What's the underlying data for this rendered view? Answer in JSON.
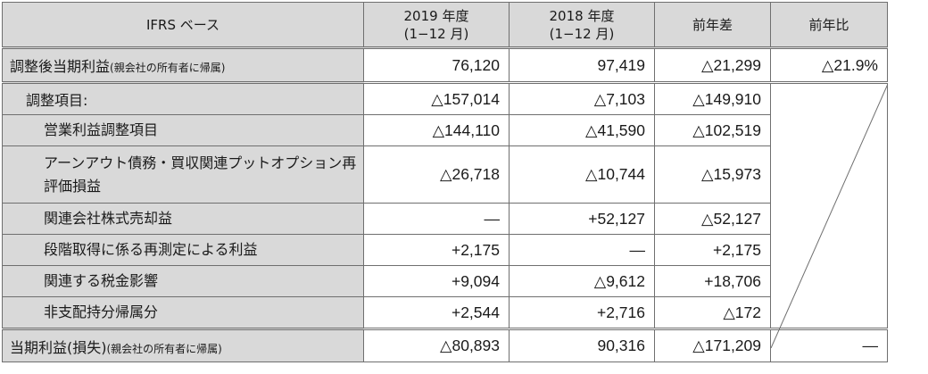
{
  "headers": {
    "basis": "IFRS ベース",
    "y2019": "2019 年度",
    "y2019_sub": "(1−12 月)",
    "y2018": "2018 年度",
    "y2018_sub": "(1−12 月)",
    "diff": "前年差",
    "ratio": "前年比"
  },
  "adjusted_profit": {
    "label": "調整後当期利益",
    "note": "(親会社の所有者に帰属)",
    "v2019": "76,120",
    "v2018": "97,419",
    "diff": "△21,299",
    "ratio": "△21.9%"
  },
  "items": [
    {
      "label": "調整項目:",
      "v2019": "△157,014",
      "v2018": "△7,103",
      "diff": "△149,910"
    },
    {
      "label": "営業利益調整項目",
      "v2019": "△144,110",
      "v2018": "△41,590",
      "diff": "△102,519"
    },
    {
      "label": "アーンアウト債務・買収関連プットオプション再評価損益",
      "v2019": "△26,718",
      "v2018": "△10,744",
      "diff": "△15,973"
    },
    {
      "label": "関連会社株式売却益",
      "v2019": "—",
      "v2018": "+52,127",
      "diff": "△52,127"
    },
    {
      "label": "段階取得に係る再測定による利益",
      "v2019": "+2,175",
      "v2018": "—",
      "diff": "+2,175"
    },
    {
      "label": "関連する税金影響",
      "v2019": "+9,094",
      "v2018": "△9,612",
      "diff": "+18,706"
    },
    {
      "label": "非支配持分帰属分",
      "v2019": "+2,544",
      "v2018": "+2,716",
      "diff": "△172"
    }
  ],
  "net_profit": {
    "label": "当期利益(損失)",
    "note": "(親会社の所有者に帰属)",
    "v2019": "△80,893",
    "v2018": "90,316",
    "diff": "△171,209",
    "ratio": "—"
  }
}
